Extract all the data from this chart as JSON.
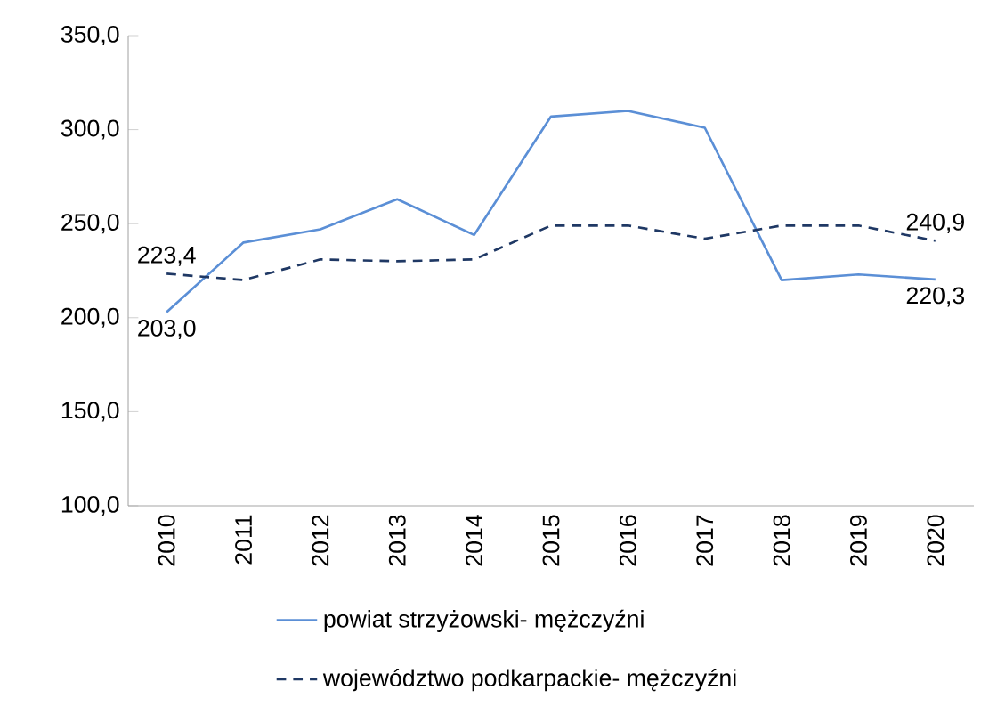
{
  "chart_data": {
    "type": "line",
    "categories": [
      "2010",
      "2011",
      "2012",
      "2013",
      "2014",
      "2015",
      "2016",
      "2017",
      "2018",
      "2019",
      "2020"
    ],
    "series": [
      {
        "name": "powiat strzyżowski- mężczyźni",
        "color": "#5b8fd6",
        "line_style": "solid",
        "values": [
          203.0,
          240,
          247,
          263,
          244,
          307,
          310,
          301,
          220,
          223,
          220.3
        ]
      },
      {
        "name": "województwo podkarpackie- mężczyźni",
        "color": "#1f3864",
        "line_style": "dashed",
        "values": [
          223.4,
          220,
          231,
          230,
          231,
          249,
          249,
          242,
          249,
          249,
          240.9
        ]
      }
    ],
    "ylim": [
      100,
      350
    ],
    "yticks": [
      {
        "value": 100,
        "label": "100,0"
      },
      {
        "value": 150,
        "label": "150,0"
      },
      {
        "value": 200,
        "label": "200,0"
      },
      {
        "value": 250,
        "label": "250,0"
      },
      {
        "value": 300,
        "label": "300,0"
      },
      {
        "value": 350,
        "label": "350,0"
      }
    ],
    "annotations": [
      {
        "text": "203,0",
        "x": "2010",
        "y": 203.0
      },
      {
        "text": "223,4",
        "x": "2010",
        "y": 223.4
      },
      {
        "text": "220,3",
        "x": "2020",
        "y": 220.3
      },
      {
        "text": "240,9",
        "x": "2020",
        "y": 240.9
      }
    ],
    "legend": "bottom",
    "grid": false,
    "marker": "none"
  }
}
